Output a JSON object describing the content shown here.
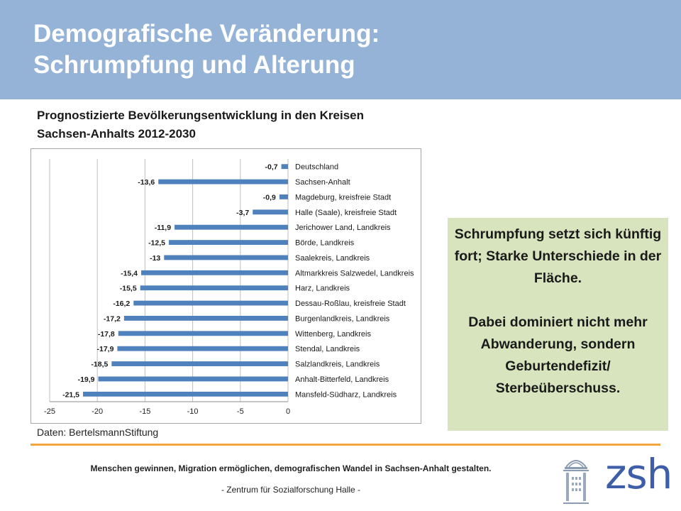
{
  "header": {
    "title_line1": "Demografische Veränderung:",
    "title_line2": "Schrumpfung und Alterung",
    "color": "#95b3d7"
  },
  "chart_heading": {
    "line1": "Prognostizierte Bevölkerungsentwicklung in den Kreisen",
    "line2": "Sachsen-Anhalts 2012-2030"
  },
  "chart_data": {
    "type": "bar",
    "orientation": "horizontal",
    "title": "Prognostizierte Bevölkerungsentwicklung in den Kreisen Sachsen-Anhalts 2012-2030",
    "categories": [
      "Deutschland",
      "Sachsen-Anhalt",
      "Magdeburg, kreisfreie Stadt",
      "Halle (Saale), kreisfreie Stadt",
      "Jerichower Land, Landkreis",
      "Börde, Landkreis",
      "Saalekreis, Landkreis",
      "Altmarkkreis Salzwedel, Landkreis",
      "Harz, Landkreis",
      "Dessau-Roßlau, kreisfreie Stadt",
      "Burgenlandkreis, Landkreis",
      "Wittenberg, Landkreis",
      "Stendal, Landkreis",
      "Salzlandkreis, Landkreis",
      "Anhalt-Bitterfeld, Landkreis",
      "Mansfeld-Südharz, Landkreis"
    ],
    "values": [
      -0.7,
      -13.6,
      -0.9,
      -3.7,
      -11.9,
      -12.5,
      -13,
      -15.4,
      -15.5,
      -16.2,
      -17.2,
      -17.8,
      -17.9,
      -18.5,
      -19.9,
      -21.5
    ],
    "value_labels": [
      "-0,7",
      "-13,6",
      "-0,9",
      "-3,7",
      "-11,9",
      "-12,5",
      "-13",
      "-15,4",
      "-15,5",
      "-16,2",
      "-17,2",
      "-17,8",
      "-17,9",
      "-18,5",
      "-19,9",
      "-21,5"
    ],
    "xlim": [
      -25,
      0
    ],
    "xticks": [
      -25,
      -20,
      -15,
      -10,
      -5,
      0
    ],
    "xtick_labels": [
      "-25",
      "-20",
      "-15",
      "-10",
      "-5",
      "0"
    ],
    "grid": true,
    "bar_color": "#4f81bd"
  },
  "source": "Daten: BertelsmannStiftung",
  "callout": {
    "paragraph1": "Schrumpfung setzt sich künftig fort; Starke Unterschiede in der Fläche.",
    "paragraph2": "Dabei dominiert nicht mehr Abwanderung, sondern Geburtendefizit/ Sterbeüberschuss.",
    "color": "#d7e4bd"
  },
  "footer": {
    "line1": "Menschen gewinnen, Migration ermöglichen, demografischen Wandel in Sachsen-Anhalt gestalten.",
    "line2": "- Zentrum für Sozialforschung Halle -",
    "divider_color": "#f2a53a"
  },
  "logo": {
    "text": "zsh",
    "icon": "building-icon",
    "color": "#3f5ea8"
  }
}
